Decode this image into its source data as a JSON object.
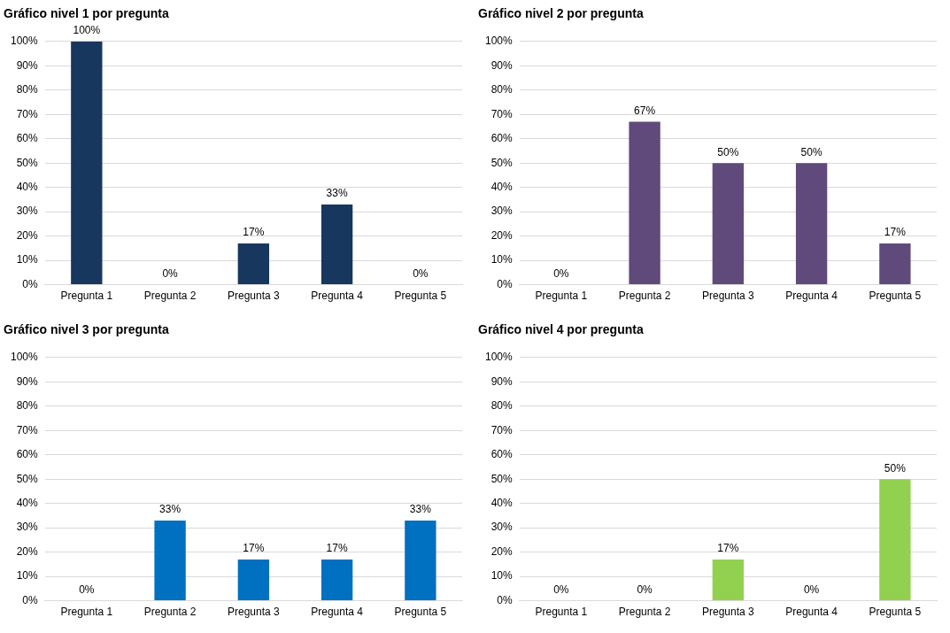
{
  "chart_data": [
    {
      "type": "bar",
      "title": "Gráfico nivel 1 por pregunta",
      "categories": [
        "Pregunta 1",
        "Pregunta 2",
        "Pregunta 3",
        "Pregunta 4",
        "Pregunta 5"
      ],
      "values": [
        100,
        0,
        17,
        33,
        0
      ],
      "value_labels": [
        "100%",
        "0%",
        "17%",
        "33%",
        "0%"
      ],
      "color": "#17375e",
      "ylim": [
        0,
        100
      ],
      "yticks": [
        {
          "value": 0,
          "label": "0%"
        },
        {
          "value": 10,
          "label": "10%"
        },
        {
          "value": 20,
          "label": "20%"
        },
        {
          "value": 30,
          "label": "30%"
        },
        {
          "value": 40,
          "label": "40%"
        },
        {
          "value": 50,
          "label": "50%"
        },
        {
          "value": 60,
          "label": "60%"
        },
        {
          "value": 70,
          "label": "70%"
        },
        {
          "value": 80,
          "label": "80%"
        },
        {
          "value": 90,
          "label": "90%"
        },
        {
          "value": 100,
          "label": "100%"
        }
      ],
      "grid": "y"
    },
    {
      "type": "bar",
      "title": "Gráfico nivel 2 por pregunta",
      "categories": [
        "Pregunta 1",
        "Pregunta 2",
        "Pregunta 3",
        "Pregunta 4",
        "Pregunta 5"
      ],
      "values": [
        0,
        67,
        50,
        50,
        17
      ],
      "value_labels": [
        "0%",
        "67%",
        "50%",
        "50%",
        "17%"
      ],
      "color": "#604a7b",
      "ylim": [
        0,
        100
      ],
      "yticks": [
        {
          "value": 0,
          "label": "0%"
        },
        {
          "value": 10,
          "label": "10%"
        },
        {
          "value": 20,
          "label": "20%"
        },
        {
          "value": 30,
          "label": "30%"
        },
        {
          "value": 40,
          "label": "40%"
        },
        {
          "value": 50,
          "label": "50%"
        },
        {
          "value": 60,
          "label": "60%"
        },
        {
          "value": 70,
          "label": "70%"
        },
        {
          "value": 80,
          "label": "80%"
        },
        {
          "value": 90,
          "label": "90%"
        },
        {
          "value": 100,
          "label": "100%"
        }
      ],
      "grid": "y"
    },
    {
      "type": "bar",
      "title": "Gráfico nivel 3 por pregunta",
      "categories": [
        "Pregunta 1",
        "Pregunta 2",
        "Pregunta 3",
        "Pregunta 4",
        "Pregunta 5"
      ],
      "values": [
        0,
        33,
        17,
        17,
        33
      ],
      "value_labels": [
        "0%",
        "33%",
        "17%",
        "17%",
        "33%"
      ],
      "color": "#0070c0",
      "ylim": [
        0,
        100
      ],
      "yticks": [
        {
          "value": 0,
          "label": "0%"
        },
        {
          "value": 10,
          "label": "10%"
        },
        {
          "value": 20,
          "label": "20%"
        },
        {
          "value": 30,
          "label": "30%"
        },
        {
          "value": 40,
          "label": "40%"
        },
        {
          "value": 50,
          "label": "50%"
        },
        {
          "value": 60,
          "label": "60%"
        },
        {
          "value": 70,
          "label": "70%"
        },
        {
          "value": 80,
          "label": "80%"
        },
        {
          "value": 90,
          "label": "90%"
        },
        {
          "value": 100,
          "label": "100%"
        }
      ],
      "grid": "y"
    },
    {
      "type": "bar",
      "title": "Gráfico nivel 4 por pregunta",
      "categories": [
        "Pregunta 1",
        "Pregunta 2",
        "Pregunta 3",
        "Pregunta 4",
        "Pregunta 5"
      ],
      "values": [
        0,
        0,
        17,
        0,
        50
      ],
      "value_labels": [
        "0%",
        "0%",
        "17%",
        "0%",
        "50%"
      ],
      "color": "#92d050",
      "ylim": [
        0,
        100
      ],
      "yticks": [
        {
          "value": 0,
          "label": "0%"
        },
        {
          "value": 10,
          "label": "10%"
        },
        {
          "value": 20,
          "label": "20%"
        },
        {
          "value": 30,
          "label": "30%"
        },
        {
          "value": 40,
          "label": "40%"
        },
        {
          "value": 50,
          "label": "50%"
        },
        {
          "value": 60,
          "label": "60%"
        },
        {
          "value": 70,
          "label": "70%"
        },
        {
          "value": 80,
          "label": "80%"
        },
        {
          "value": 90,
          "label": "90%"
        },
        {
          "value": 100,
          "label": "100%"
        }
      ],
      "grid": "y"
    }
  ]
}
